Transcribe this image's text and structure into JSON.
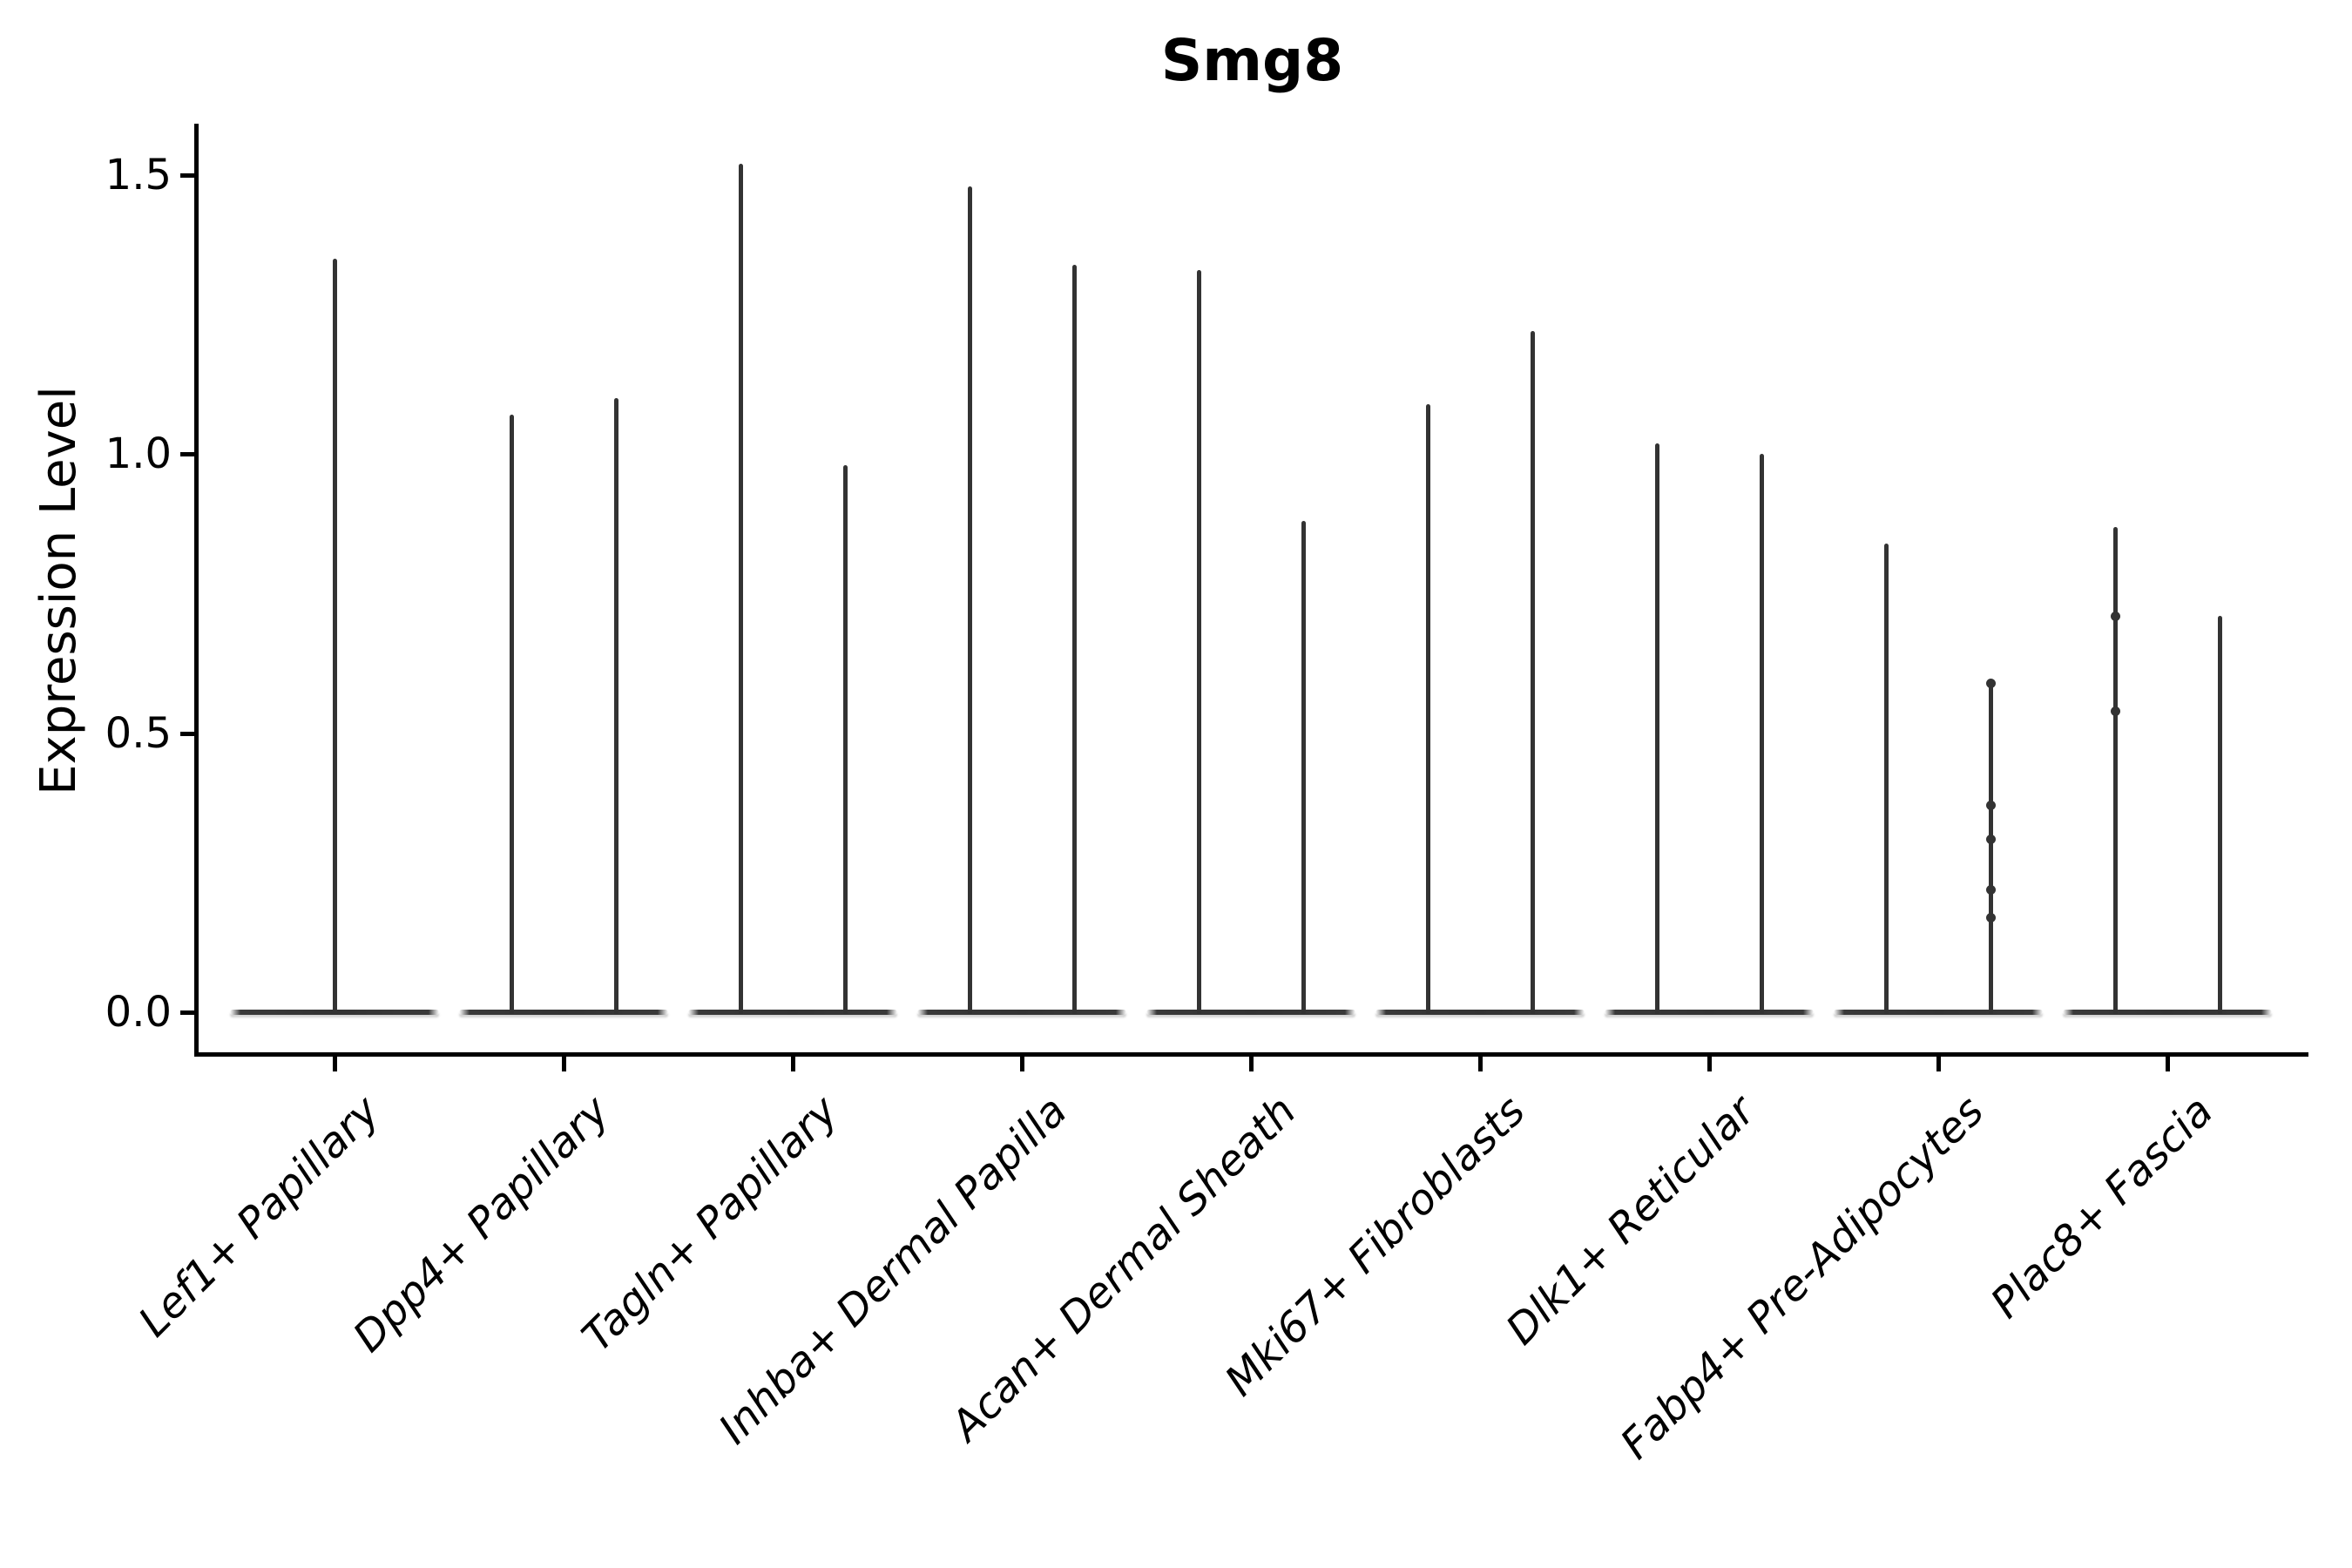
{
  "title": "Smg8",
  "y_axis": {
    "label": "Expression Level",
    "ticks": [
      "0.0",
      "0.5",
      "1.0",
      "1.5"
    ]
  },
  "chart_data": {
    "type": "violin",
    "title": "Smg8",
    "xlabel": "",
    "ylabel": "Expression Level",
    "yticks": [
      0.0,
      0.5,
      1.0,
      1.5
    ],
    "ylim": [
      -0.075,
      1.59
    ],
    "grid": false,
    "legend": "none",
    "colors": {
      "violin": "#333333",
      "axis": "#000000",
      "background": "#ffffff"
    },
    "categories": [
      "Lef1+ Papillary",
      "Dpp4+ Papillary",
      "Tagln+ Papillary",
      "Inhba+ Dermal Papilla",
      "Acan+ Dermal Sheath",
      "Mki67+ Fibroblasts",
      "Dlk1+ Reticular",
      "Fabp4+ Pre-Adipocytes",
      "Plac8+ Fascia"
    ],
    "groups": [
      {
        "category": "Lef1+ Papillary",
        "violins": [
          {
            "side": 0,
            "max": 1.35
          }
        ]
      },
      {
        "category": "Dpp4+ Papillary",
        "violins": [
          {
            "side": -1,
            "max": 1.07
          },
          {
            "side": 1,
            "max": 1.1
          }
        ]
      },
      {
        "category": "Tagln+ Papillary",
        "violins": [
          {
            "side": -1,
            "max": 1.52
          },
          {
            "side": 1,
            "max": 0.98
          }
        ]
      },
      {
        "category": "Inhba+ Dermal Papilla",
        "violins": [
          {
            "side": -1,
            "max": 1.48
          },
          {
            "side": 1,
            "max": 1.34
          }
        ]
      },
      {
        "category": "Acan+ Dermal Sheath",
        "violins": [
          {
            "side": -1,
            "max": 1.33
          },
          {
            "side": 1,
            "max": 0.88
          }
        ]
      },
      {
        "category": "Mki67+ Fibroblasts",
        "violins": [
          {
            "side": -1,
            "max": 1.09
          },
          {
            "side": 1,
            "max": 1.22
          }
        ]
      },
      {
        "category": "Dlk1+ Reticular",
        "violins": [
          {
            "side": -1,
            "max": 1.02
          },
          {
            "side": 1,
            "max": 1.0
          }
        ]
      },
      {
        "category": "Fabp4+ Pre-Adipocytes",
        "violins": [
          {
            "side": -1,
            "max": 0.84
          },
          {
            "side": 1,
            "max": 0.59,
            "dots": [
              0.59,
              0.37,
              0.31,
              0.22,
              0.17
            ]
          }
        ]
      },
      {
        "category": "Plac8+ Fascia",
        "violins": [
          {
            "side": -1,
            "max": 0.87,
            "dots": [
              0.71,
              0.54
            ]
          },
          {
            "side": 1,
            "max": 0.71
          }
        ]
      }
    ],
    "description": "Violin plot of Smg8 expression per fibroblast cluster; density collapsed at 0 with thin spikes reaching each violin's maximum expression value."
  }
}
